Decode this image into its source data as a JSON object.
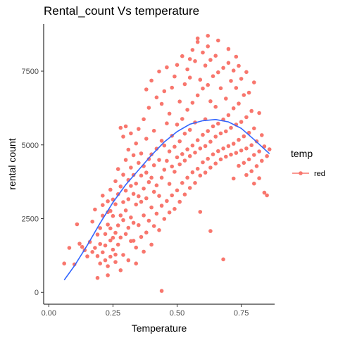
{
  "chart_data": {
    "type": "scatter",
    "title": "Rental_count Vs temperature",
    "xlabel": "Temperature",
    "ylabel": "rental count",
    "xlim": [
      -0.02,
      0.88
    ],
    "ylim": [
      -400,
      9100
    ],
    "x_ticks": [
      "0.00",
      "0.25",
      "0.50",
      "0.75"
    ],
    "x_tick_values": [
      0.0,
      0.25,
      0.5,
      0.75
    ],
    "y_ticks": [
      "0",
      "2500",
      "5000",
      "7500"
    ],
    "y_tick_values": [
      0,
      2500,
      5000,
      7500
    ],
    "grid": false,
    "legend": {
      "title": "temp",
      "position": "right",
      "entries": [
        "red"
      ]
    },
    "colors": {
      "points": "#F8766D",
      "smooth": "#3366FF",
      "axis": "#000000"
    },
    "series": [
      {
        "type": "scatter",
        "points": [
          [
            0.06,
            980
          ],
          [
            0.08,
            1510
          ],
          [
            0.1,
            950
          ],
          [
            0.11,
            2310
          ],
          [
            0.12,
            1650
          ],
          [
            0.13,
            1540
          ],
          [
            0.14,
            1430
          ],
          [
            0.15,
            1220
          ],
          [
            0.16,
            1710
          ],
          [
            0.17,
            1370
          ],
          [
            0.17,
            2400
          ],
          [
            0.18,
            1510
          ],
          [
            0.18,
            2810
          ],
          [
            0.19,
            1230
          ],
          [
            0.19,
            1960
          ],
          [
            0.2,
            980
          ],
          [
            0.2,
            1640
          ],
          [
            0.2,
            2180
          ],
          [
            0.21,
            1360
          ],
          [
            0.21,
            2960
          ],
          [
            0.21,
            3280
          ],
          [
            0.22,
            1090
          ],
          [
            0.22,
            1590
          ],
          [
            0.22,
            1980
          ],
          [
            0.23,
            580
          ],
          [
            0.23,
            2300
          ],
          [
            0.23,
            2720
          ],
          [
            0.23,
            3090
          ],
          [
            0.24,
            1210
          ],
          [
            0.24,
            1760
          ],
          [
            0.24,
            2170
          ],
          [
            0.24,
            3480
          ],
          [
            0.25,
            1450
          ],
          [
            0.25,
            1850
          ],
          [
            0.25,
            2590
          ],
          [
            0.25,
            3150
          ],
          [
            0.26,
            1030
          ],
          [
            0.26,
            2020
          ],
          [
            0.26,
            2990
          ],
          [
            0.26,
            3770
          ],
          [
            0.27,
            1620
          ],
          [
            0.27,
            2270
          ],
          [
            0.27,
            3330
          ],
          [
            0.27,
            4180
          ],
          [
            0.28,
            1860
          ],
          [
            0.28,
            2610
          ],
          [
            0.28,
            3590
          ],
          [
            0.28,
            5580
          ],
          [
            0.29,
            1270
          ],
          [
            0.29,
            2450
          ],
          [
            0.29,
            3060
          ],
          [
            0.29,
            3990
          ],
          [
            0.29,
            5280
          ],
          [
            0.3,
            1980
          ],
          [
            0.3,
            2780
          ],
          [
            0.3,
            3450
          ],
          [
            0.3,
            4490
          ],
          [
            0.3,
            5630
          ],
          [
            0.31,
            2190
          ],
          [
            0.31,
            3160
          ],
          [
            0.31,
            3810
          ],
          [
            0.31,
            4840
          ],
          [
            0.32,
            1740
          ],
          [
            0.32,
            2540
          ],
          [
            0.32,
            3610
          ],
          [
            0.32,
            4230
          ],
          [
            0.32,
            5390
          ],
          [
            0.33,
            2360
          ],
          [
            0.33,
            3340
          ],
          [
            0.33,
            3980
          ],
          [
            0.33,
            4650
          ],
          [
            0.34,
            1520
          ],
          [
            0.34,
            2980
          ],
          [
            0.34,
            3690
          ],
          [
            0.34,
            5050
          ],
          [
            0.35,
            2280
          ],
          [
            0.35,
            3260
          ],
          [
            0.35,
            4390
          ],
          [
            0.35,
            5540
          ],
          [
            0.36,
            1880
          ],
          [
            0.36,
            3070
          ],
          [
            0.36,
            3960
          ],
          [
            0.36,
            4710
          ],
          [
            0.37,
            2610
          ],
          [
            0.37,
            3520
          ],
          [
            0.37,
            4280
          ],
          [
            0.37,
            5870
          ],
          [
            0.38,
            2030
          ],
          [
            0.38,
            3190
          ],
          [
            0.38,
            4060
          ],
          [
            0.38,
            5210
          ],
          [
            0.38,
            6880
          ],
          [
            0.39,
            2430
          ],
          [
            0.39,
            3740
          ],
          [
            0.39,
            4520
          ],
          [
            0.39,
            6260
          ],
          [
            0.4,
            1620
          ],
          [
            0.4,
            2880
          ],
          [
            0.4,
            3890
          ],
          [
            0.4,
            4680
          ],
          [
            0.4,
            7180
          ],
          [
            0.41,
            2250
          ],
          [
            0.41,
            3410
          ],
          [
            0.41,
            4310
          ],
          [
            0.41,
            5480
          ],
          [
            0.42,
            2670
          ],
          [
            0.42,
            3630
          ],
          [
            0.42,
            4870
          ],
          [
            0.42,
            6610
          ],
          [
            0.43,
            2110
          ],
          [
            0.43,
            3270
          ],
          [
            0.43,
            4490
          ],
          [
            0.43,
            7490
          ],
          [
            0.44,
            50
          ],
          [
            0.44,
            2940
          ],
          [
            0.44,
            3890
          ],
          [
            0.44,
            5140
          ],
          [
            0.44,
            6390
          ],
          [
            0.45,
            2490
          ],
          [
            0.45,
            4160
          ],
          [
            0.45,
            4980
          ],
          [
            0.45,
            6820
          ],
          [
            0.46,
            3100
          ],
          [
            0.46,
            4460
          ],
          [
            0.46,
            5730
          ],
          [
            0.46,
            7630
          ],
          [
            0.47,
            2710
          ],
          [
            0.47,
            3680
          ],
          [
            0.47,
            4780
          ],
          [
            0.47,
            6060
          ],
          [
            0.48,
            3290
          ],
          [
            0.48,
            4270
          ],
          [
            0.48,
            5310
          ],
          [
            0.48,
            6940
          ],
          [
            0.49,
            2830
          ],
          [
            0.49,
            4090
          ],
          [
            0.49,
            4940
          ],
          [
            0.49,
            7320
          ],
          [
            0.5,
            3460
          ],
          [
            0.5,
            4580
          ],
          [
            0.5,
            5690
          ],
          [
            0.5,
            7710
          ],
          [
            0.51,
            3070
          ],
          [
            0.51,
            4340
          ],
          [
            0.51,
            5120
          ],
          [
            0.51,
            6470
          ],
          [
            0.52,
            3710
          ],
          [
            0.52,
            4690
          ],
          [
            0.52,
            5880
          ],
          [
            0.52,
            8010
          ],
          [
            0.53,
            3320
          ],
          [
            0.53,
            4470
          ],
          [
            0.53,
            5380
          ],
          [
            0.53,
            7060
          ],
          [
            0.54,
            3890
          ],
          [
            0.54,
            4850
          ],
          [
            0.54,
            6190
          ],
          [
            0.54,
            7560
          ],
          [
            0.55,
            3540
          ],
          [
            0.55,
            4620
          ],
          [
            0.55,
            5510
          ],
          [
            0.55,
            7280
          ],
          [
            0.56,
            4070
          ],
          [
            0.56,
            4980
          ],
          [
            0.56,
            6430
          ],
          [
            0.56,
            8220
          ],
          [
            0.57,
            3710
          ],
          [
            0.57,
            4740
          ],
          [
            0.57,
            5760
          ],
          [
            0.57,
            7840
          ],
          [
            0.58,
            4190
          ],
          [
            0.58,
            5160
          ],
          [
            0.58,
            6680
          ],
          [
            0.58,
            8490
          ],
          [
            0.59,
            2730
          ],
          [
            0.59,
            3960
          ],
          [
            0.59,
            4880
          ],
          [
            0.59,
            7210
          ],
          [
            0.6,
            4410
          ],
          [
            0.6,
            5340
          ],
          [
            0.6,
            6910
          ],
          [
            0.6,
            8130
          ],
          [
            0.61,
            4060
          ],
          [
            0.61,
            4960
          ],
          [
            0.61,
            5870
          ],
          [
            0.61,
            7690
          ],
          [
            0.62,
            4530
          ],
          [
            0.62,
            5470
          ],
          [
            0.62,
            7030
          ],
          [
            0.62,
            8340
          ],
          [
            0.63,
            2080
          ],
          [
            0.63,
            4230
          ],
          [
            0.63,
            5110
          ],
          [
            0.63,
            6480
          ],
          [
            0.63,
            7880
          ],
          [
            0.64,
            4680
          ],
          [
            0.64,
            5630
          ],
          [
            0.64,
            7330
          ],
          [
            0.65,
            4370
          ],
          [
            0.65,
            5280
          ],
          [
            0.65,
            6290
          ],
          [
            0.65,
            8020
          ],
          [
            0.66,
            4790
          ],
          [
            0.66,
            5720
          ],
          [
            0.66,
            7460
          ],
          [
            0.67,
            4510
          ],
          [
            0.67,
            5390
          ],
          [
            0.67,
            6920
          ],
          [
            0.68,
            1120
          ],
          [
            0.68,
            4880
          ],
          [
            0.68,
            5860
          ],
          [
            0.68,
            7610
          ],
          [
            0.69,
            4600
          ],
          [
            0.69,
            5460
          ],
          [
            0.69,
            6570
          ],
          [
            0.7,
            4960
          ],
          [
            0.7,
            6010
          ],
          [
            0.7,
            7780
          ],
          [
            0.71,
            4670
          ],
          [
            0.71,
            5580
          ],
          [
            0.71,
            7170
          ],
          [
            0.72,
            3860
          ],
          [
            0.72,
            5040
          ],
          [
            0.72,
            6240
          ],
          [
            0.72,
            7520
          ],
          [
            0.73,
            4730
          ],
          [
            0.73,
            5690
          ],
          [
            0.73,
            6930
          ],
          [
            0.74,
            4290
          ],
          [
            0.74,
            5170
          ],
          [
            0.74,
            6400
          ],
          [
            0.74,
            7680
          ],
          [
            0.75,
            4810
          ],
          [
            0.75,
            5780
          ],
          [
            0.75,
            7240
          ],
          [
            0.76,
            4390
          ],
          [
            0.76,
            5290
          ],
          [
            0.76,
            6690
          ],
          [
            0.77,
            3980
          ],
          [
            0.77,
            4880
          ],
          [
            0.77,
            5940
          ],
          [
            0.77,
            7470
          ],
          [
            0.78,
            4510
          ],
          [
            0.78,
            5410
          ],
          [
            0.78,
            6770
          ],
          [
            0.79,
            4110
          ],
          [
            0.79,
            4990
          ],
          [
            0.79,
            6150
          ],
          [
            0.8,
            3690
          ],
          [
            0.8,
            4660
          ],
          [
            0.8,
            5560
          ],
          [
            0.8,
            7120
          ],
          [
            0.81,
            4280
          ],
          [
            0.81,
            5120
          ],
          [
            0.82,
            3870
          ],
          [
            0.82,
            4780
          ],
          [
            0.82,
            6080
          ],
          [
            0.83,
            4460
          ],
          [
            0.83,
            5330
          ],
          [
            0.84,
            3380
          ],
          [
            0.84,
            4950
          ],
          [
            0.85,
            3290
          ],
          [
            0.85,
            4620
          ],
          [
            0.86,
            4850
          ],
          [
            0.62,
            8700
          ],
          [
            0.66,
            8540
          ],
          [
            0.58,
            8610
          ],
          [
            0.7,
            8250
          ],
          [
            0.55,
            7910
          ],
          [
            0.73,
            7990
          ],
          [
            0.26,
            1280
          ],
          [
            0.23,
            890
          ],
          [
            0.19,
            490
          ],
          [
            0.28,
            750
          ],
          [
            0.31,
            1090
          ],
          [
            0.34,
            980
          ],
          [
            0.37,
            1380
          ],
          [
            0.21,
            2600
          ],
          [
            0.24,
            2760
          ],
          [
            0.33,
            1750
          ]
        ]
      },
      {
        "type": "smooth",
        "points": [
          [
            0.06,
            420
          ],
          [
            0.1,
            900
          ],
          [
            0.15,
            1600
          ],
          [
            0.2,
            2350
          ],
          [
            0.25,
            3050
          ],
          [
            0.3,
            3650
          ],
          [
            0.35,
            4150
          ],
          [
            0.4,
            4650
          ],
          [
            0.45,
            5100
          ],
          [
            0.5,
            5450
          ],
          [
            0.55,
            5700
          ],
          [
            0.6,
            5820
          ],
          [
            0.65,
            5860
          ],
          [
            0.7,
            5780
          ],
          [
            0.75,
            5560
          ],
          [
            0.8,
            5180
          ],
          [
            0.86,
            4700
          ]
        ]
      }
    ]
  }
}
